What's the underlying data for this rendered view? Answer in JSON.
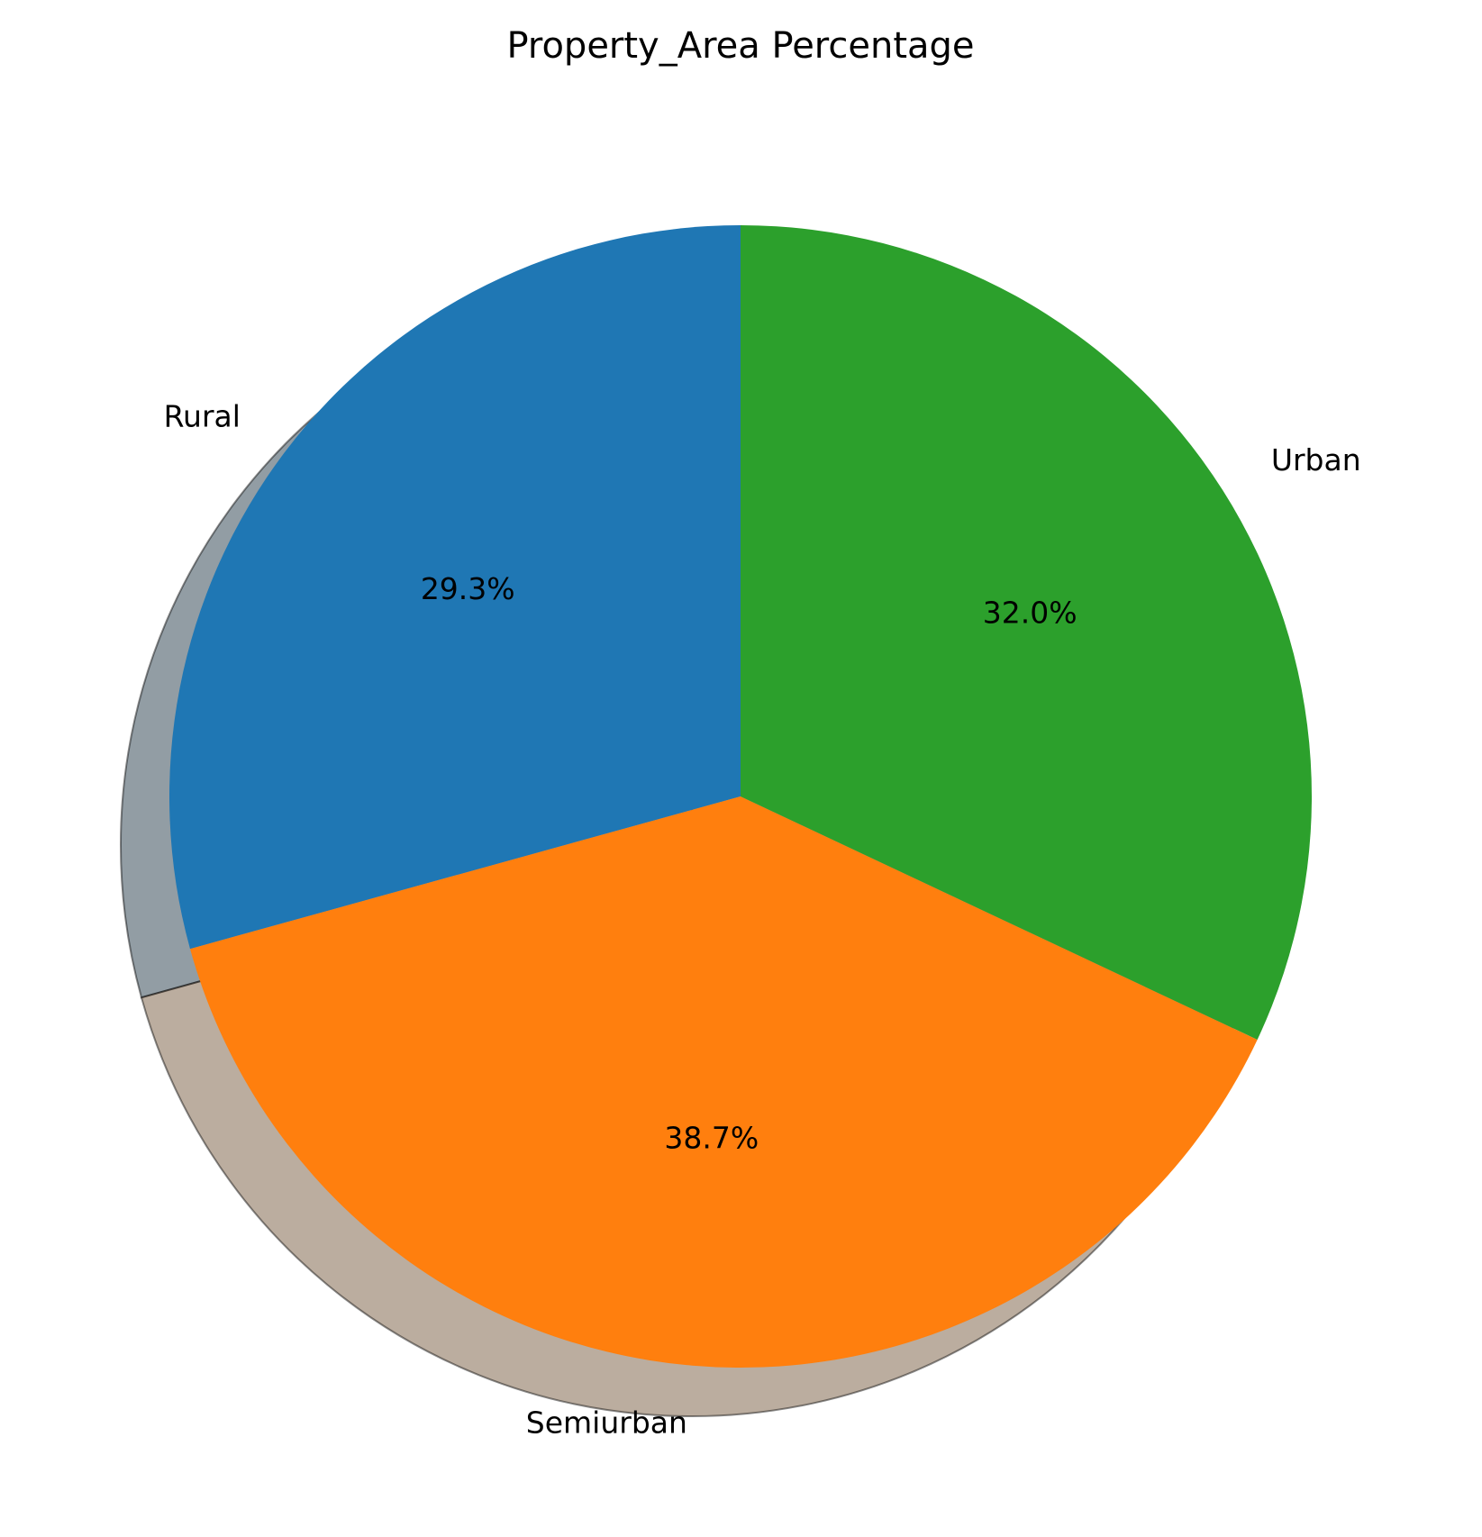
{
  "chart_data": {
    "type": "pie",
    "title": "Property_Area Percentage",
    "labels": [
      "Rural",
      "Semiurban",
      "Urban"
    ],
    "values": [
      29.3,
      38.7,
      32.0
    ],
    "value_labels": [
      "29.3%",
      "38.7%",
      "32.0%"
    ],
    "colors": [
      "#1f77b4",
      "#ff7f0e",
      "#2ca02c"
    ],
    "start_angle_deg": 90,
    "direction": "counterclockwise",
    "shadow": true,
    "legend": "none"
  }
}
